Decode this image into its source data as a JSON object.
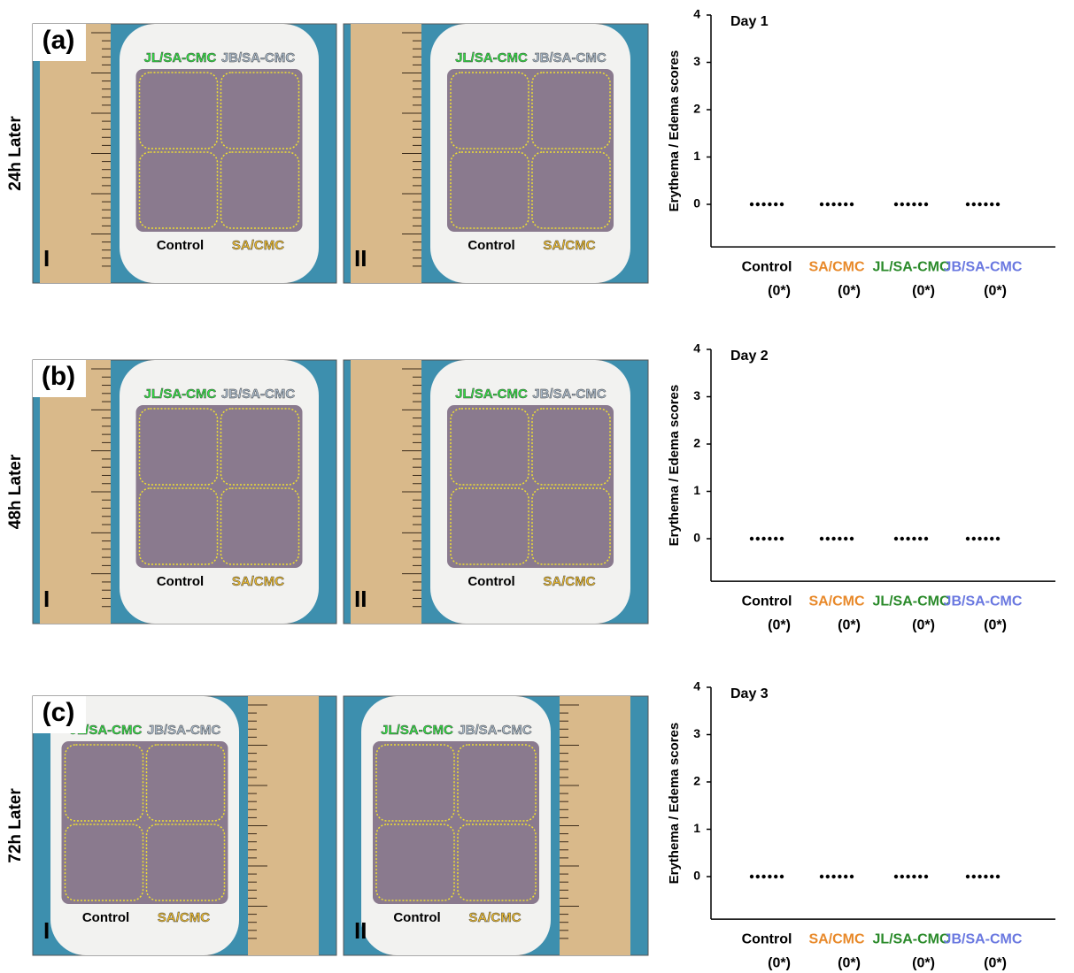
{
  "rows": [
    {
      "panel": "(a)",
      "time": "24h Later",
      "photos": [
        {
          "numeral": "I",
          "labels": [
            "JL/SA-CMC",
            "JB/SA-CMC",
            "Control",
            "SA/CMC"
          ]
        },
        {
          "numeral": "II",
          "labels": [
            "JL/SA-CMC",
            "JB/SA-CMC",
            "Control",
            "SA/CMC"
          ]
        }
      ]
    },
    {
      "panel": "(b)",
      "time": "48h Later",
      "photos": [
        {
          "numeral": "I",
          "labels": [
            "JL/SA-CMC",
            "JB/SA-CMC",
            "Control",
            "SA/CMC"
          ]
        },
        {
          "numeral": "II",
          "labels": [
            "JL/SA-CMC",
            "JB/SA-CMC",
            "Control",
            "SA/CMC"
          ]
        }
      ]
    },
    {
      "panel": "(c)",
      "time": "72h Later",
      "photos": [
        {
          "numeral": "I",
          "labels": [
            "JL/SA-CMC",
            "JB/SA-CMC",
            "Control",
            "SA/CMC"
          ]
        },
        {
          "numeral": "II",
          "labels": [
            "JL/SA-CMC",
            "JB/SA-CMC",
            "Control",
            "SA/CMC"
          ]
        }
      ]
    }
  ],
  "chart_data": [
    {
      "type": "dot",
      "title": "Day 1",
      "ylabel": "Erythema / Edema scores",
      "categories": [
        "Control",
        "SA/CMC",
        "JL/SA-CMC",
        "JB/SA-CMC"
      ],
      "category_notes": [
        "(0*)",
        "(0*)",
        "(0*)",
        "(0*)"
      ],
      "category_colors": [
        "#000000",
        "#e8892a",
        "#2a8a2a",
        "#6a78e0"
      ],
      "values": [
        [
          0,
          0,
          0,
          0,
          0,
          0
        ],
        [
          0,
          0,
          0,
          0,
          0,
          0
        ],
        [
          0,
          0,
          0,
          0,
          0,
          0
        ],
        [
          0,
          0,
          0,
          0,
          0,
          0
        ]
      ],
      "color": "#000000",
      "ylim": [
        -0.9,
        4
      ],
      "yticks": [
        0,
        1,
        2,
        3,
        4
      ]
    },
    {
      "type": "dot",
      "title": "Day 2",
      "ylabel": "Erythema / Edema scores",
      "categories": [
        "Control",
        "SA/CMC",
        "JL/SA-CMC",
        "JB/SA-CMC"
      ],
      "category_notes": [
        "(0*)",
        "(0*)",
        "(0*)",
        "(0*)"
      ],
      "category_colors": [
        "#000000",
        "#e8892a",
        "#2a8a2a",
        "#6a78e0"
      ],
      "values": [
        [
          0,
          0,
          0,
          0,
          0,
          0
        ],
        [
          0,
          0,
          0,
          0,
          0,
          0
        ],
        [
          0,
          0,
          0,
          0,
          0,
          0
        ],
        [
          0,
          0,
          0,
          0,
          0,
          0
        ]
      ],
      "color": "#000000",
      "ylim": [
        -0.9,
        4
      ],
      "yticks": [
        0,
        1,
        2,
        3,
        4
      ]
    },
    {
      "type": "dot",
      "title": "Day 3",
      "ylabel": "Erythema / Edema scores",
      "categories": [
        "Control",
        "SA/CMC",
        "JL/SA-CMC",
        "JB/SA-CMC"
      ],
      "category_notes": [
        "(0*)",
        "(0*)",
        "(0*)",
        "(0*)"
      ],
      "category_colors": [
        "#000000",
        "#e8892a",
        "#2a8a2a",
        "#6a78e0"
      ],
      "values": [
        [
          0,
          0,
          0,
          0,
          0,
          0
        ],
        [
          0,
          0,
          0,
          0,
          0,
          0
        ],
        [
          0,
          0,
          0,
          0,
          0,
          0
        ],
        [
          0,
          0,
          0,
          0,
          0,
          0
        ]
      ],
      "color": "#000000",
      "ylim": [
        -0.9,
        4
      ],
      "yticks": [
        0,
        1,
        2,
        3,
        4
      ]
    }
  ]
}
